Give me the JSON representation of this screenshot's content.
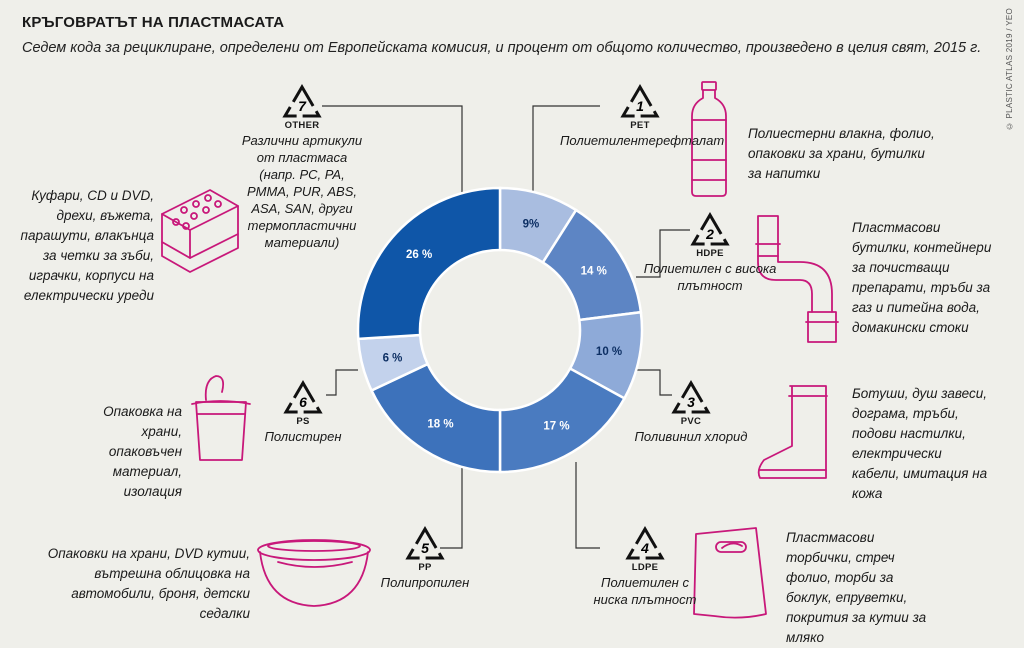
{
  "header": {
    "title": "КРЪГОВРАТЪТ НА ПЛАСТМАСАТА",
    "subtitle": "Седем кода за рециклиране, определени от Европейската комисия, и процент от общото количество, произведено в целия свят, 2015 г.",
    "credit": "© PLASTIC ATLAS 2019 / YEO"
  },
  "colors": {
    "background": "#efefea",
    "accent_magenta": "#c8187a",
    "line": "#333333",
    "pet": "#a9bde0",
    "hdpe": "#5d85c4",
    "pvc": "#8eaad8",
    "ldpe": "#4a7bc0",
    "pp": "#3d72bb",
    "ps": "#c3d2ec",
    "other": "#0f56a8"
  },
  "chart_data": {
    "type": "pie",
    "donut": true,
    "categories": [
      "PET",
      "HDPE",
      "PVC",
      "LDPE",
      "PP",
      "PS",
      "OTHER"
    ],
    "values": [
      9,
      14,
      10,
      17,
      18,
      6,
      26
    ],
    "value_labels": [
      "9%",
      "14 %",
      "10 %",
      "17 %",
      "18 %",
      "6 %",
      "26 %"
    ],
    "unit": "%"
  },
  "codes": [
    {
      "num": "1",
      "abbr": "PET",
      "name": "Полиетилентерефталат",
      "uses": "Полиестерни влакна, фолио, опаковки за храни, бутилки за напитки",
      "icon": "bottle-icon"
    },
    {
      "num": "2",
      "abbr": "HDPE",
      "name": "Полиетилен с висока плътност",
      "uses": "Пластмасови бутилки, контейнери за почистващи препарати, тръби за газ и питейна вода, домакински стоки",
      "icon": "pipe-icon"
    },
    {
      "num": "3",
      "abbr": "PVC",
      "name": "Поливинил хлорид",
      "uses": "Ботуши, душ завеси, дограма, тръби, подови настилки, електрически кабели, имитация на кожа",
      "icon": "boot-icon"
    },
    {
      "num": "4",
      "abbr": "LDPE",
      "name": "Полиетилен с ниска плътност",
      "uses": "Пластмасови торбички, стреч фолио, торби за боклук, епруветки, покрития за кутии за мляко",
      "icon": "bag-icon"
    },
    {
      "num": "5",
      "abbr": "PP",
      "name": "Полипропилен",
      "uses": "Опаковки на храни, DVD кутии, вътрешна облицовка на автомобили, броня, детски седалки",
      "icon": "bowl-icon"
    },
    {
      "num": "6",
      "abbr": "PS",
      "name": "Полистирен",
      "uses": "Опаковка на храни, опаковъчен материал, изолация",
      "icon": "yogurt-cup-icon"
    },
    {
      "num": "7",
      "abbr": "OTHER",
      "name": "Различни артикули от пластмаса (напр. PC, PA, PMMA, PUR, ABS, ASA, SAN, други термопластични материали)",
      "uses": "Куфари, CD и DVD, дрехи, въжета, парашути, влакънца за четки за зъби, играчки, корпуси на електрически уреди",
      "icon": "toy-brick-icon"
    }
  ]
}
